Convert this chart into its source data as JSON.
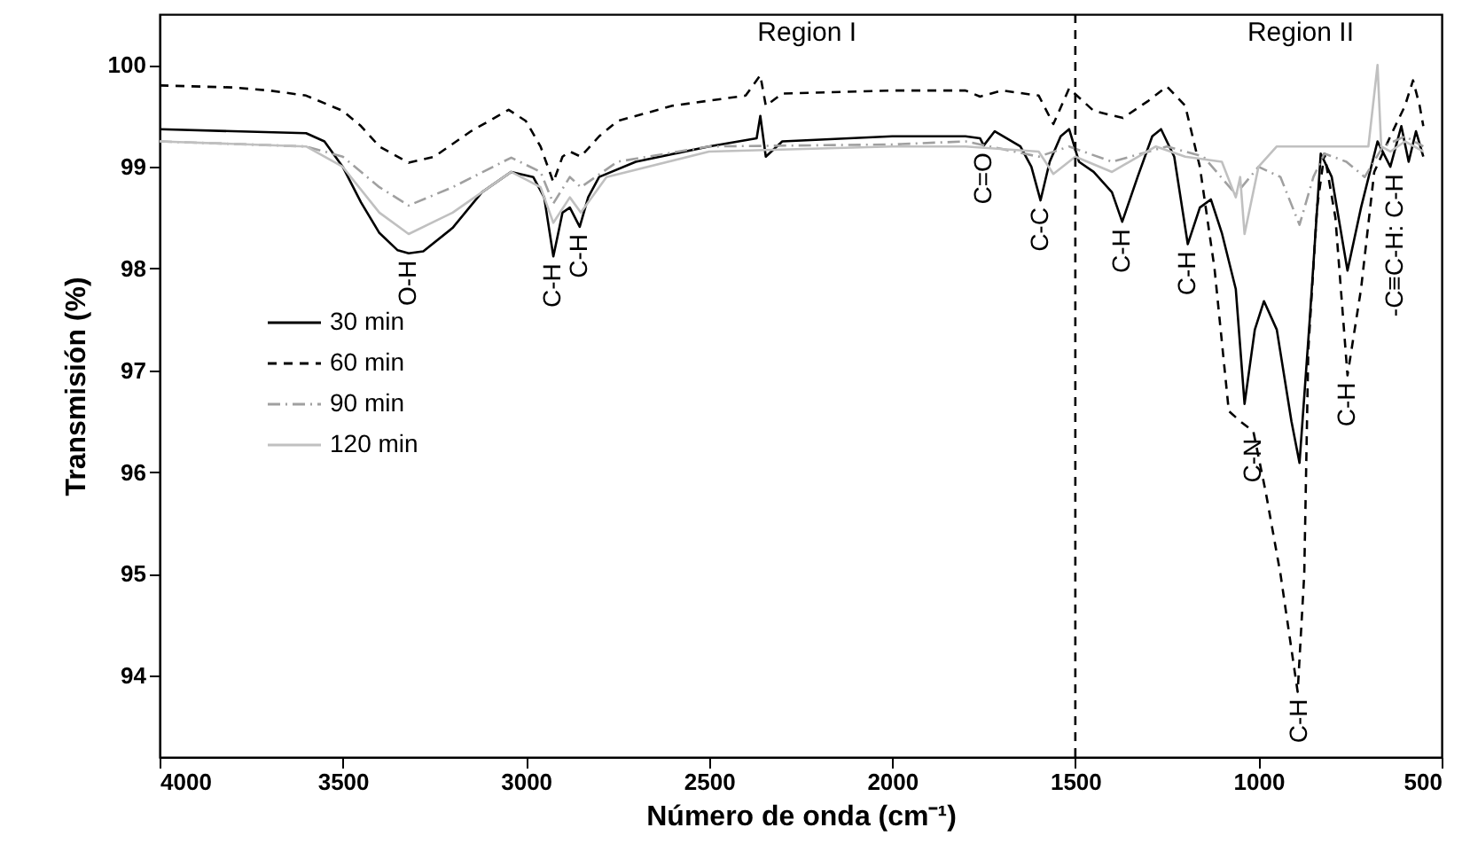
{
  "chart_data": {
    "type": "line",
    "xlabel": "Número de onda (cm⁻¹)",
    "ylabel": "Transmisión (%)",
    "xlim": [
      4000,
      500
    ],
    "xticks": [
      4000,
      3500,
      3000,
      2500,
      2000,
      1500,
      1000,
      500
    ],
    "ylim": [
      93.2,
      100.5
    ],
    "yticks": [
      94,
      95,
      96,
      97,
      98,
      99,
      100
    ],
    "legend": "left",
    "grid": false,
    "series": [
      {
        "name": "30 min",
        "color": "#000000",
        "line_style": "solid",
        "x": [
          4000,
          3800,
          3600,
          3550,
          3500,
          3450,
          3400,
          3350,
          3320,
          3280,
          3200,
          3120,
          3040,
          2980,
          2950,
          2925,
          2900,
          2880,
          2853,
          2830,
          2800,
          2700,
          2500,
          2370,
          2360,
          2345,
          2330,
          2300,
          2000,
          1800,
          1760,
          1750,
          1720,
          1650,
          1620,
          1595,
          1570,
          1540,
          1517,
          1490,
          1450,
          1400,
          1372,
          1330,
          1290,
          1266,
          1230,
          1193,
          1160,
          1130,
          1100,
          1062,
          1038,
          1010,
          985,
          950,
          910,
          888,
          860,
          830,
          800,
          757,
          720,
          675,
          640,
          610,
          590,
          570,
          550
        ],
        "values": [
          99.37,
          99.35,
          99.33,
          99.25,
          99.0,
          98.65,
          98.35,
          98.18,
          98.15,
          98.17,
          98.4,
          98.75,
          98.95,
          98.9,
          98.7,
          98.12,
          98.55,
          98.6,
          98.41,
          98.7,
          98.9,
          99.05,
          99.2,
          99.28,
          99.5,
          99.1,
          99.15,
          99.25,
          99.3,
          99.3,
          99.28,
          99.21,
          99.35,
          99.2,
          99.0,
          98.67,
          99.05,
          99.3,
          99.37,
          99.05,
          98.95,
          98.75,
          98.46,
          98.9,
          99.3,
          99.37,
          99.1,
          98.24,
          98.6,
          98.68,
          98.35,
          97.8,
          96.67,
          97.4,
          97.68,
          97.4,
          96.5,
          96.09,
          97.5,
          99.13,
          98.9,
          97.98,
          98.6,
          99.25,
          99.0,
          99.4,
          99.05,
          99.35,
          99.1
        ]
      },
      {
        "name": "60 min",
        "color": "#000000",
        "line_style": "dashed",
        "x": [
          4000,
          3800,
          3700,
          3600,
          3500,
          3450,
          3400,
          3320,
          3250,
          3150,
          3047,
          3000,
          2960,
          2925,
          2900,
          2880,
          2850,
          2800,
          2750,
          2600,
          2400,
          2360,
          2345,
          2300,
          2000,
          1800,
          1760,
          1700,
          1600,
          1560,
          1517,
          1450,
          1370,
          1300,
          1250,
          1200,
          1160,
          1120,
          1081,
          1050,
          1014,
          980,
          940,
          893,
          875,
          864,
          840,
          820,
          790,
          757,
          720,
          684,
          640,
          600,
          578,
          560,
          550
        ],
        "values": [
          99.8,
          99.78,
          99.75,
          99.7,
          99.55,
          99.4,
          99.2,
          99.04,
          99.1,
          99.35,
          99.56,
          99.45,
          99.2,
          98.85,
          99.1,
          99.15,
          99.1,
          99.3,
          99.45,
          99.6,
          99.7,
          99.9,
          99.6,
          99.72,
          99.75,
          99.75,
          99.69,
          99.75,
          99.7,
          99.42,
          99.77,
          99.55,
          99.48,
          99.65,
          99.79,
          99.6,
          99.0,
          98.0,
          96.6,
          96.5,
          96.4,
          95.8,
          95.0,
          93.84,
          95.0,
          97.2,
          98.6,
          99.13,
          98.5,
          96.95,
          97.8,
          98.95,
          99.3,
          99.6,
          99.85,
          99.6,
          99.4
        ]
      },
      {
        "name": "90 min",
        "color": "#a0a0a0",
        "line_style": "dashdot",
        "x": [
          4000,
          3600,
          3500,
          3400,
          3320,
          3200,
          3040,
          2960,
          2925,
          2880,
          2850,
          2750,
          2500,
          2000,
          1800,
          1600,
          1517,
          1400,
          1250,
          1150,
          1062,
          1000,
          940,
          888,
          850,
          820,
          760,
          710,
          660,
          600,
          550
        ],
        "values": [
          99.25,
          99.2,
          99.1,
          98.8,
          98.62,
          98.8,
          99.09,
          98.95,
          98.64,
          98.9,
          98.8,
          99.05,
          99.2,
          99.22,
          99.25,
          99.1,
          99.2,
          99.05,
          99.2,
          99.1,
          98.73,
          99.0,
          98.9,
          98.43,
          98.9,
          99.13,
          99.05,
          98.9,
          99.2,
          99.3,
          99.2
        ]
      },
      {
        "name": "120 min",
        "color": "#c0c0c0",
        "line_style": "solid",
        "x": [
          4000,
          3600,
          3500,
          3400,
          3320,
          3200,
          3040,
          2960,
          2925,
          2880,
          2850,
          2780,
          2500,
          2000,
          1800,
          1600,
          1560,
          1500,
          1400,
          1280,
          1200,
          1100,
          1062,
          1050,
          1038,
          1000,
          950,
          800,
          700,
          675,
          665,
          640,
          600,
          550
        ],
        "values": [
          99.25,
          99.2,
          99.0,
          98.55,
          98.34,
          98.55,
          98.95,
          98.8,
          98.45,
          98.7,
          98.55,
          98.9,
          99.15,
          99.2,
          99.2,
          99.15,
          98.93,
          99.1,
          98.95,
          99.2,
          99.1,
          99.05,
          98.7,
          98.9,
          98.34,
          99.0,
          99.2,
          99.2,
          99.2,
          100.0,
          99.2,
          99.15,
          99.25,
          99.15
        ]
      }
    ],
    "ref_lines": [
      {
        "axis": "x",
        "value": 1500,
        "color": "#000000",
        "line_style": "dashed"
      }
    ],
    "annotations": [
      "Region I",
      "Region II",
      {
        "text": "O-H",
        "x": 3320,
        "y": 98.15
      },
      {
        "text": "C-H",
        "x": 2925,
        "y": 98.12
      },
      {
        "text": "C-H",
        "x": 2853,
        "y": 98.41
      },
      {
        "text": "C=O",
        "x": 1750,
        "y": 99.21
      },
      {
        "text": "C-C",
        "x": 1595,
        "y": 98.67
      },
      {
        "text": "C-H",
        "x": 1372,
        "y": 98.46
      },
      {
        "text": "C-H",
        "x": 1193,
        "y": 98.24
      },
      {
        "text": "C-N",
        "x": 1014,
        "y": 96.4
      },
      {
        "text": "C-H",
        "x": 888,
        "y": 93.84
      },
      {
        "text": "C-H",
        "x": 757,
        "y": 96.95
      },
      {
        "text": "-C≡C-H: C-H",
        "x": 627,
        "y": 99.0
      }
    ]
  }
}
